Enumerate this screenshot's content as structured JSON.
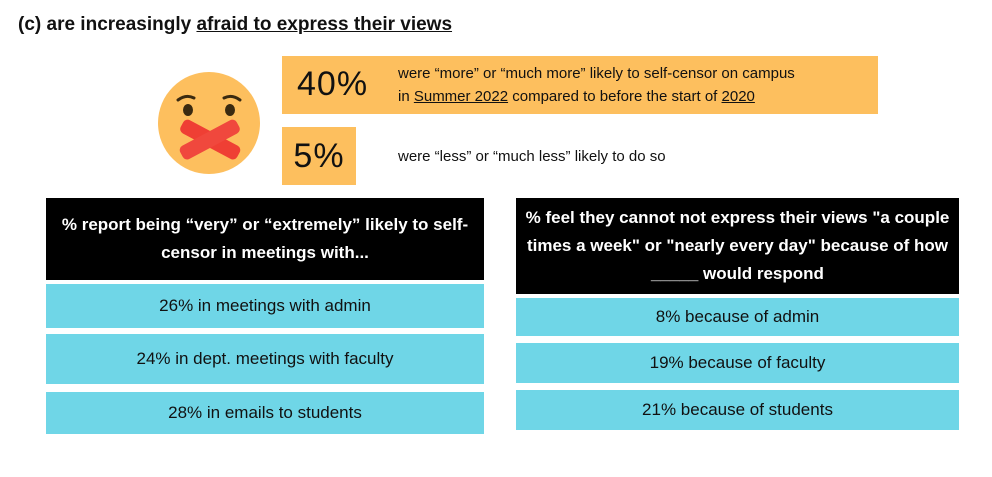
{
  "heading": {
    "prefix": "(c) are increasingly ",
    "underlined": "afraid to express their views"
  },
  "emoji": {
    "icon": "face-with-crossed-mouth-tape-icon",
    "face_color": "#fdbf5e",
    "tape_color": "#ef3f34"
  },
  "stat1": {
    "value": "40%",
    "line1": "were “more” or “much more” likely to self-censor on campus",
    "line2_prefix": "in ",
    "line2_link1": "Summer 2022",
    "line2_mid": " compared to before the start of  ",
    "line2_link2": "2020"
  },
  "stat2": {
    "value": "5%",
    "text": "were “less” or “much less” likely to do so"
  },
  "left_panel": {
    "header": "% report being “very” or “extremely” likely to self-censor in meetings with...",
    "rows": [
      "26% in meetings with admin",
      "24% in dept. meetings with faculty",
      "28% in emails to students"
    ]
  },
  "right_panel": {
    "header": "% feel they cannot not express their views \"a couple times a week\" or \"nearly every day\" because of how _____ would respond",
    "rows": [
      "8% because of admin",
      "19% because of faculty",
      "21% because of students"
    ]
  },
  "colors": {
    "accent_orange": "#fdbf5e",
    "row_cyan": "#6fd6e7",
    "header_black": "#000000"
  }
}
